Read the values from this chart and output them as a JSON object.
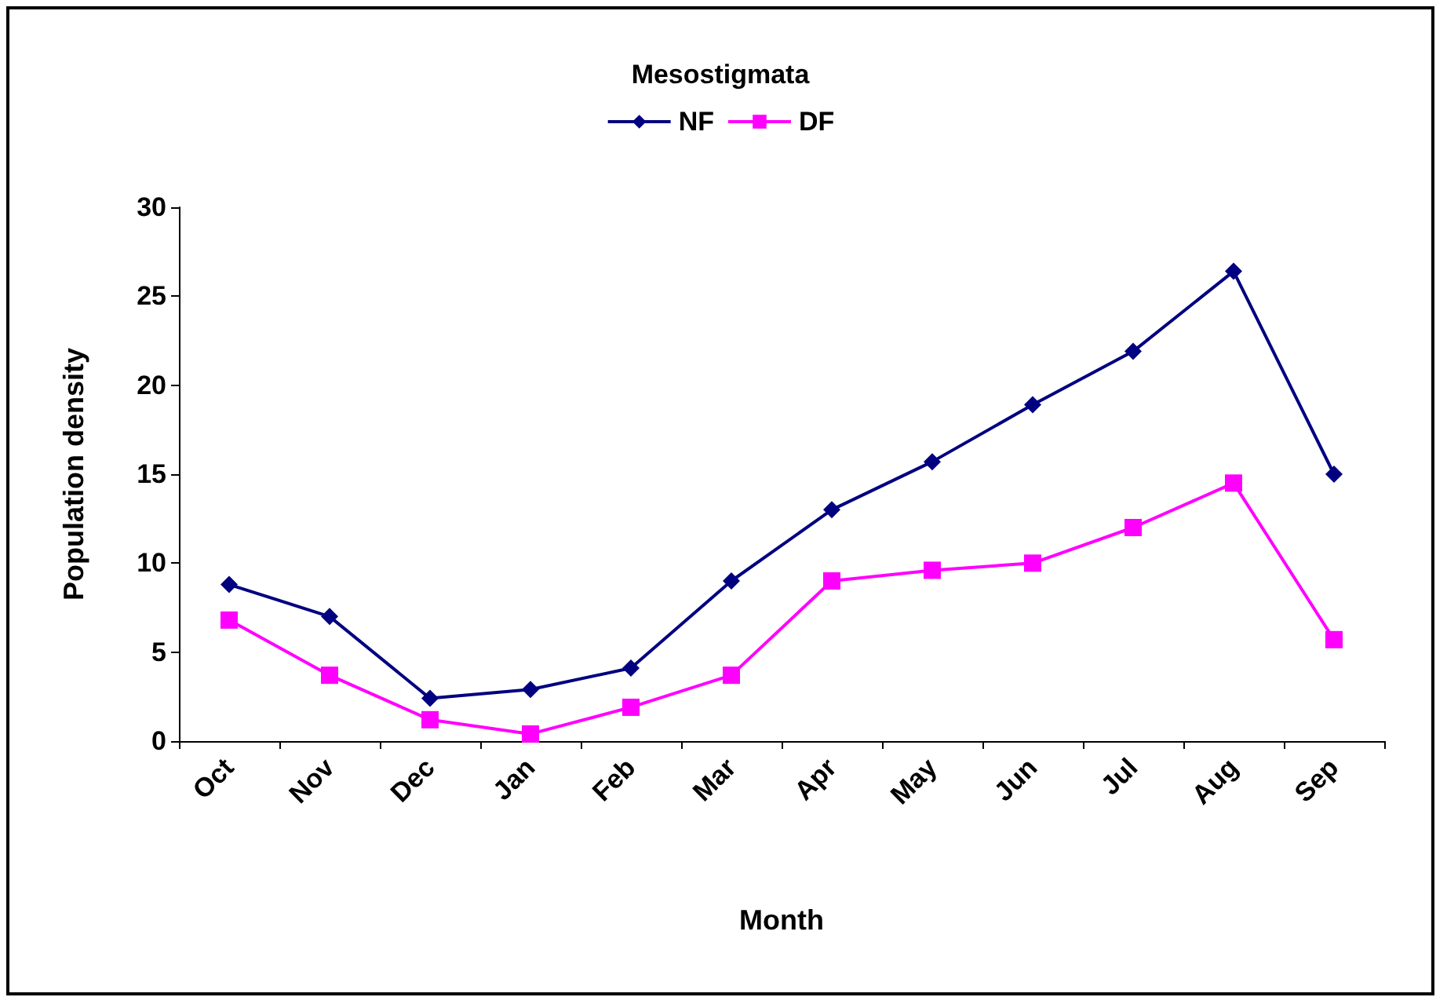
{
  "chart_data": {
    "type": "line",
    "title": "Mesostigmata",
    "xlabel": "Month",
    "ylabel": "Population density",
    "categories": [
      "Oct",
      "Nov",
      "Dec",
      "Jan",
      "Feb",
      "Mar",
      "Apr",
      "May",
      "Jun",
      "Jul",
      "Aug",
      "Sep"
    ],
    "series": [
      {
        "name": "NF",
        "color": "#000080",
        "marker": "diamond",
        "values": [
          8.8,
          7.0,
          2.4,
          2.9,
          4.1,
          9.0,
          13.0,
          15.7,
          18.9,
          21.9,
          26.4,
          15.0
        ]
      },
      {
        "name": "DF",
        "color": "#ff00ff",
        "marker": "square",
        "values": [
          6.8,
          3.7,
          1.2,
          0.4,
          1.9,
          3.7,
          9.0,
          9.6,
          10.0,
          12.0,
          14.5,
          5.7
        ]
      }
    ],
    "ylim": [
      0,
      30
    ],
    "yticks": [
      0,
      5,
      10,
      15,
      20,
      25,
      30
    ],
    "grid": false,
    "legend": "top",
    "line_style": "solid"
  }
}
